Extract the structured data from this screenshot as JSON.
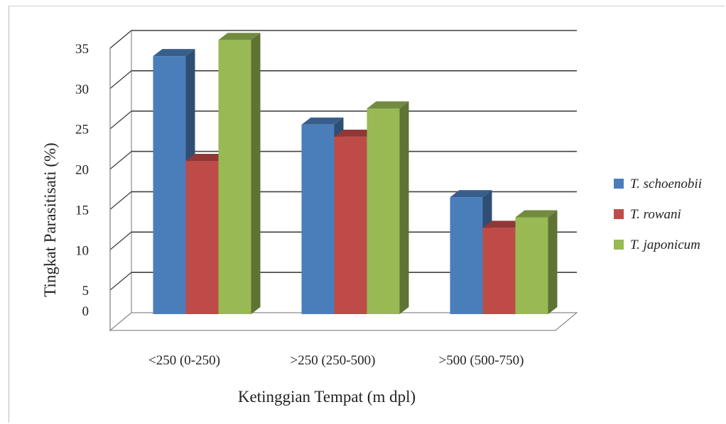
{
  "chart_data": {
    "type": "bar",
    "categories": [
      "<250 (0-250)",
      ">250 (250-500)",
      ">500 (500-750)"
    ],
    "series": [
      {
        "name": "T. schoenobii",
        "values": [
          32,
          23.5,
          14.5
        ],
        "color": "#4a7ebb"
      },
      {
        "name": "T. rowani",
        "values": [
          19,
          22,
          10.7
        ],
        "color": "#be4b48"
      },
      {
        "name": "T. japonicum",
        "values": [
          34,
          25.5,
          12
        ],
        "color": "#98b954"
      }
    ],
    "yticks": [
      "0",
      "5",
      "10",
      "15",
      "20",
      "25",
      "30",
      "35"
    ],
    "ylim": [
      0,
      35
    ],
    "xlabel": "Ketinggian Tempat (m dpl)",
    "ylabel": "Tingkat Parasitisati (%)",
    "grid": true,
    "legend": "right"
  }
}
